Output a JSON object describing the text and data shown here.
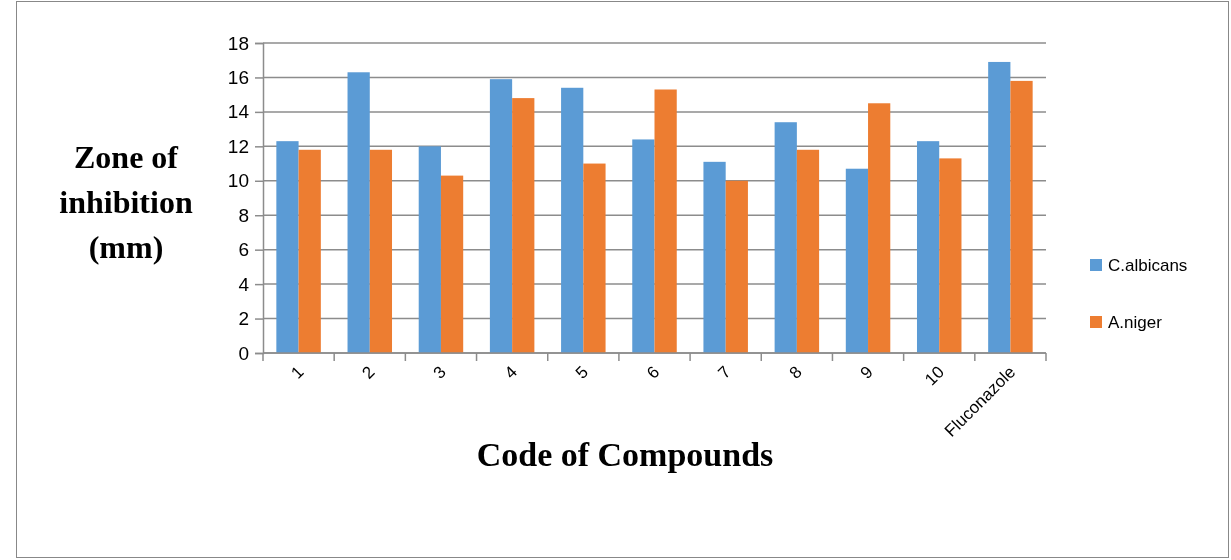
{
  "chart_data": {
    "type": "bar",
    "xlabel": "Code of Compounds",
    "ylabel": "Zone of inhibition (mm)",
    "categories": [
      "1",
      "2",
      "3",
      "4",
      "5",
      "6",
      "7",
      "8",
      "9",
      "10",
      "Fluconazole"
    ],
    "series": [
      {
        "name": "C.albicans",
        "color": "#5b9bd5",
        "values": [
          12.3,
          16.3,
          12.0,
          15.9,
          15.4,
          12.4,
          11.1,
          13.4,
          10.7,
          12.3,
          16.9
        ]
      },
      {
        "name": "A.niger",
        "color": "#ed7d31",
        "values": [
          11.8,
          11.8,
          10.3,
          14.8,
          11.0,
          15.3,
          10.0,
          11.8,
          14.5,
          11.3,
          15.8
        ]
      }
    ],
    "ylim": [
      0,
      18
    ],
    "yticks": [
      0,
      2,
      4,
      6,
      8,
      10,
      12,
      14,
      16,
      18
    ],
    "grid": "y",
    "legend": "right"
  }
}
